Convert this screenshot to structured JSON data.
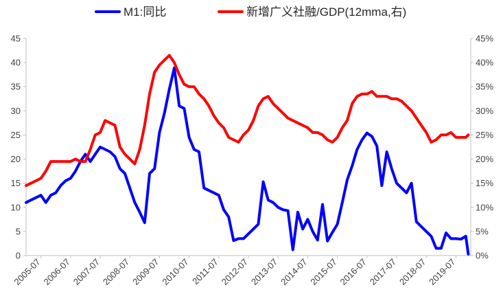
{
  "colors": {
    "m1": "#0000ff",
    "tsf": "#ff0000",
    "axis": "#bfbfbf",
    "text": "#404040"
  },
  "chart_data": {
    "type": "line",
    "title": "",
    "legend_position": "top",
    "grid": false,
    "x_ticks": [
      "2005-07",
      "2006-07",
      "2007-07",
      "2008-07",
      "2009-07",
      "2010-07",
      "2011-07",
      "2012-07",
      "2013-07",
      "2014-07",
      "2015-07",
      "2016-07",
      "2017-07",
      "2018-07",
      "2019-07"
    ],
    "left_axis": {
      "ylim": [
        0,
        45
      ],
      "ticks": [
        "0",
        "5",
        "10",
        "15",
        "20",
        "25",
        "30",
        "35",
        "40",
        "45"
      ]
    },
    "right_axis": {
      "ylim": [
        0,
        45
      ],
      "ticks": [
        "0%",
        "5%",
        "10%",
        "15%",
        "20%",
        "25%",
        "30%",
        "35%",
        "40%",
        "45%"
      ]
    },
    "series": [
      {
        "name": "M1:同比",
        "axis": "left",
        "x": [
          "2005-01",
          "2005-03",
          "2005-05",
          "2005-07",
          "2005-09",
          "2005-11",
          "2006-01",
          "2006-03",
          "2006-05",
          "2006-07",
          "2006-09",
          "2006-11",
          "2007-01",
          "2007-03",
          "2007-05",
          "2007-07",
          "2007-09",
          "2007-11",
          "2008-01",
          "2008-03",
          "2008-05",
          "2008-07",
          "2008-09",
          "2008-11",
          "2009-01",
          "2009-03",
          "2009-05",
          "2009-07",
          "2009-09",
          "2009-11",
          "2010-01",
          "2010-03",
          "2010-05",
          "2010-07",
          "2010-09",
          "2010-11",
          "2011-01",
          "2011-03",
          "2011-05",
          "2011-07",
          "2011-09",
          "2011-11",
          "2012-01",
          "2012-03",
          "2012-05",
          "2012-07",
          "2012-09",
          "2012-11",
          "2013-01",
          "2013-03",
          "2013-05",
          "2013-07",
          "2013-09",
          "2013-11",
          "2014-01",
          "2014-03",
          "2014-05",
          "2014-07",
          "2014-09",
          "2014-11",
          "2015-01",
          "2015-03",
          "2015-05",
          "2015-07",
          "2015-09",
          "2015-11",
          "2016-01",
          "2016-03",
          "2016-05",
          "2016-07",
          "2016-09",
          "2016-11",
          "2017-01",
          "2017-03",
          "2017-05",
          "2017-07",
          "2017-09",
          "2017-11",
          "2018-01",
          "2018-03",
          "2018-05",
          "2018-07",
          "2018-09",
          "2018-11",
          "2019-01",
          "2019-03",
          "2019-05",
          "2019-07",
          "2019-09",
          "2019-11",
          "2019-12"
        ],
        "values": [
          11.0,
          11.5,
          12.0,
          12.5,
          11.0,
          12.5,
          13.0,
          14.5,
          15.5,
          16.0,
          17.5,
          19.5,
          21.0,
          19.5,
          21.0,
          22.5,
          22.0,
          21.5,
          20.5,
          18.0,
          17.0,
          14.0,
          11.0,
          9.0,
          6.8,
          17.0,
          18.0,
          25.5,
          29.5,
          34.5,
          38.9,
          31.0,
          30.5,
          24.5,
          22.0,
          21.5,
          14.0,
          13.5,
          13.0,
          12.5,
          9.5,
          8.0,
          3.1,
          3.5,
          3.5,
          4.5,
          5.5,
          6.5,
          15.3,
          11.5,
          11.0,
          10.0,
          9.5,
          9.3,
          1.2,
          9.0,
          5.5,
          7.5,
          5.0,
          3.2,
          10.6,
          3.0,
          4.8,
          6.5,
          11.0,
          15.7,
          18.6,
          22.0,
          24.0,
          25.4,
          24.7,
          22.7,
          14.5,
          21.5,
          18.0,
          15.0,
          14.0,
          13.0,
          15.0,
          7.0,
          6.0,
          5.0,
          4.0,
          1.5,
          1.5,
          4.7,
          3.5,
          3.5,
          3.4,
          4.0,
          0.3
        ]
      },
      {
        "name": "新增广义社融/GDP(12mma,右)",
        "axis": "right",
        "x": [
          "2005-01",
          "2005-03",
          "2005-05",
          "2005-07",
          "2005-09",
          "2005-11",
          "2006-01",
          "2006-03",
          "2006-05",
          "2006-07",
          "2006-09",
          "2006-11",
          "2007-01",
          "2007-03",
          "2007-05",
          "2007-07",
          "2007-09",
          "2007-11",
          "2008-01",
          "2008-03",
          "2008-05",
          "2008-07",
          "2008-09",
          "2008-11",
          "2009-01",
          "2009-03",
          "2009-05",
          "2009-07",
          "2009-09",
          "2009-11",
          "2010-01",
          "2010-03",
          "2010-05",
          "2010-07",
          "2010-09",
          "2010-11",
          "2011-01",
          "2011-03",
          "2011-05",
          "2011-07",
          "2011-09",
          "2011-11",
          "2012-01",
          "2012-03",
          "2012-05",
          "2012-07",
          "2012-09",
          "2012-11",
          "2013-01",
          "2013-03",
          "2013-05",
          "2013-07",
          "2013-09",
          "2013-11",
          "2014-01",
          "2014-03",
          "2014-05",
          "2014-07",
          "2014-09",
          "2014-11",
          "2015-01",
          "2015-03",
          "2015-05",
          "2015-07",
          "2015-09",
          "2015-11",
          "2016-01",
          "2016-03",
          "2016-05",
          "2016-07",
          "2016-09",
          "2016-11",
          "2017-01",
          "2017-03",
          "2017-05",
          "2017-07",
          "2017-09",
          "2017-11",
          "2018-01",
          "2018-03",
          "2018-05",
          "2018-07",
          "2018-09",
          "2018-11",
          "2019-01",
          "2019-03",
          "2019-05",
          "2019-07",
          "2019-09",
          "2019-11",
          "2019-12"
        ],
        "values": [
          14.5,
          15.0,
          15.5,
          16.0,
          17.5,
          19.5,
          19.5,
          19.5,
          19.5,
          19.5,
          20.0,
          19.5,
          19.5,
          22.0,
          25.0,
          25.5,
          28.0,
          27.5,
          27.0,
          22.5,
          21.0,
          20.0,
          19.0,
          22.0,
          27.0,
          33.5,
          38.0,
          39.5,
          40.5,
          41.5,
          40.0,
          37.5,
          35.5,
          35.0,
          35.0,
          33.5,
          32.5,
          31.0,
          29.0,
          27.5,
          26.5,
          24.5,
          24.0,
          23.5,
          25.0,
          26.0,
          28.0,
          31.0,
          32.5,
          33.0,
          31.5,
          30.5,
          29.5,
          28.5,
          28.0,
          27.5,
          27.0,
          26.5,
          25.5,
          25.5,
          25.0,
          24.0,
          23.5,
          24.5,
          26.5,
          28.0,
          31.5,
          33.0,
          33.5,
          33.5,
          34.0,
          33.0,
          33.0,
          33.0,
          32.5,
          32.5,
          32.0,
          31.0,
          30.0,
          28.5,
          27.0,
          25.5,
          23.5,
          24.0,
          25.0,
          25.0,
          25.5,
          24.5,
          24.5,
          24.5,
          25.0
        ]
      }
    ]
  }
}
